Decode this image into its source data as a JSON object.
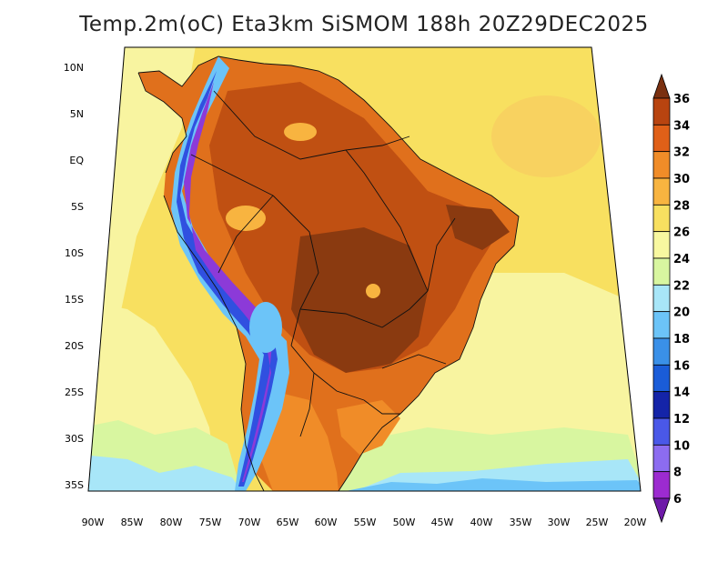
{
  "title": "Temp.2m(oC) Eta3km SiSMOM 188h 20Z29DEC2025",
  "lat_labels": [
    "10N",
    "5N",
    "EQ",
    "5S",
    "10S",
    "15S",
    "20S",
    "25S",
    "30S",
    "35S"
  ],
  "lon_labels": [
    "90W",
    "85W",
    "80W",
    "75W",
    "70W",
    "65W",
    "60W",
    "55W",
    "50W",
    "45W",
    "40W",
    "35W",
    "30W",
    "25W",
    "20W"
  ],
  "colorbar": {
    "levels": [
      "6",
      "8",
      "10",
      "12",
      "14",
      "16",
      "18",
      "20",
      "22",
      "24",
      "26",
      "28",
      "30",
      "32",
      "34",
      "36"
    ],
    "colors": [
      "#6e1aa8",
      "#9c2bd0",
      "#8c6cf0",
      "#4a58e8",
      "#1424a8",
      "#1a5cd8",
      "#3a90e8",
      "#6cc4f8",
      "#a8e6f8",
      "#d8f6a0",
      "#f8f8a0",
      "#f8e060",
      "#f8b440",
      "#f08c28",
      "#e06018",
      "#b84410",
      "#7a3010"
    ]
  },
  "palette": {
    "ocean_warm": "#f8e060",
    "ocean_mid": "#f8f4a0",
    "ocean_cool": "#d8f6a0",
    "ocean_cold": "#a8e6f8",
    "land_hot": "#e0701c",
    "land_hotter": "#c05012",
    "land_core": "#8a3a10",
    "andes_cold": "#6cc4f8",
    "andes_colder": "#3050e0",
    "andes_purple": "#8c3ad8",
    "border": "#111111"
  }
}
